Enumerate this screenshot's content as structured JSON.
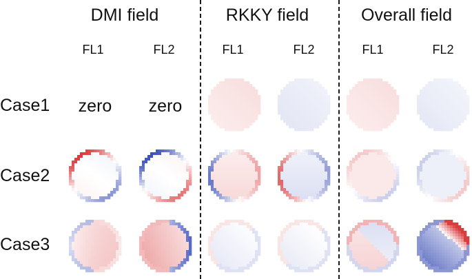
{
  "groups": [
    {
      "title": "DMI field",
      "col1": "FL1",
      "col2": "FL2"
    },
    {
      "title": "RKKY field",
      "col1": "FL1",
      "col2": "FL2"
    },
    {
      "title": "Overall field",
      "col1": "FL1",
      "col2": "FL2"
    }
  ],
  "rows": [
    {
      "label": "Case1",
      "dmi_fl1": "zero",
      "dmi_fl2": "zero"
    },
    {
      "label": "Case2"
    },
    {
      "label": "Case3"
    }
  ],
  "colors": {
    "positive": "#d62728",
    "negative": "#2a3fb0",
    "divider": "#1a1a1a"
  },
  "maps": [
    {
      "row": 1,
      "group": 1,
      "col": 1,
      "fill": 0.12,
      "ring": 0.12,
      "grad": 0.0,
      "pattern": "uniform"
    },
    {
      "row": 1,
      "group": 1,
      "col": 2,
      "fill": -0.1,
      "ring": -0.1,
      "grad": 0.0,
      "pattern": "uniform"
    },
    {
      "row": 1,
      "group": 2,
      "col": 1,
      "fill": 0.12,
      "ring": 0.12,
      "grad": 0.0,
      "pattern": "uniform"
    },
    {
      "row": 1,
      "group": 2,
      "col": 2,
      "fill": -0.09,
      "ring": -0.09,
      "grad": 0.0,
      "pattern": "uniform"
    },
    {
      "row": 2,
      "group": 0,
      "col": 1,
      "fill": 0.0,
      "ring": 0.9,
      "grad": 0.05,
      "pattern": "ring-tl-pos"
    },
    {
      "row": 2,
      "group": 0,
      "col": 2,
      "fill": 0.0,
      "ring": 0.9,
      "grad": 0.05,
      "pattern": "ring-tl-neg"
    },
    {
      "row": 2,
      "group": 1,
      "col": 1,
      "fill": 0.13,
      "ring": 0.7,
      "grad": 0.05,
      "pattern": "ring-left-neg"
    },
    {
      "row": 2,
      "group": 1,
      "col": 2,
      "fill": -0.12,
      "ring": 0.7,
      "grad": 0.05,
      "pattern": "ring-left-pos"
    },
    {
      "row": 2,
      "group": 2,
      "col": 1,
      "fill": 0.1,
      "ring": 0.25,
      "grad": 0.03,
      "pattern": "ring-soft-pos"
    },
    {
      "row": 2,
      "group": 2,
      "col": 2,
      "fill": -0.08,
      "ring": 0.25,
      "grad": 0.03,
      "pattern": "ring-soft-neg"
    },
    {
      "row": 3,
      "group": 0,
      "col": 1,
      "fill": 0.2,
      "ring": 0.35,
      "grad": 0.15,
      "pattern": "tilt-pos"
    },
    {
      "row": 3,
      "group": 0,
      "col": 2,
      "fill": 0.28,
      "ring": 0.8,
      "grad": 0.2,
      "pattern": "tilt-pos-blue-rim"
    },
    {
      "row": 3,
      "group": 1,
      "col": 1,
      "fill": -0.06,
      "ring": 0.15,
      "grad": 0.1,
      "pattern": "mixed-soft"
    },
    {
      "row": 3,
      "group": 1,
      "col": 2,
      "fill": -0.05,
      "ring": 0.15,
      "grad": 0.1,
      "pattern": "mixed-soft"
    },
    {
      "row": 3,
      "group": 2,
      "col": 1,
      "fill": 0.05,
      "ring": 0.35,
      "grad": 0.25,
      "pattern": "split-diag"
    },
    {
      "row": 3,
      "group": 2,
      "col": 2,
      "fill": -0.3,
      "ring": 0.9,
      "grad": 0.5,
      "pattern": "split-corner"
    }
  ]
}
